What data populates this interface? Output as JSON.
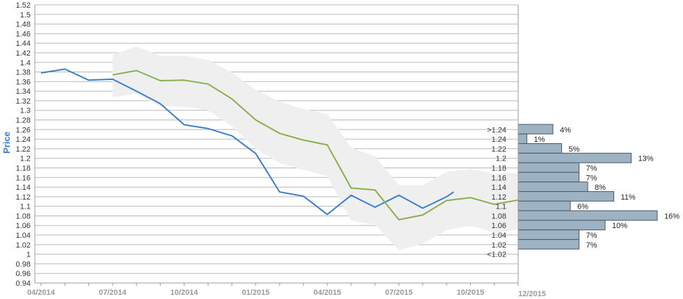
{
  "chart_data": {
    "type": "line",
    "ylabel": "Price",
    "ylim": [
      0.94,
      1.52
    ],
    "y_ticks": [
      "0.94",
      "0.96",
      "0.98",
      "1",
      "1.02",
      "1.04",
      "1.06",
      "1.08",
      "1.1",
      "1.12",
      "1.14",
      "1.16",
      "1.18",
      "1.2",
      "1.22",
      "1.24",
      "1.26",
      "1.28",
      "1.3",
      "1.32",
      "1.34",
      "1.36",
      "1.38",
      "1.4",
      "1.42",
      "1.44",
      "1.46",
      "1.48",
      "1.5",
      "1.52"
    ],
    "x_ticks": [
      "04/2014",
      "07/2014",
      "10/2014",
      "01/2015",
      "04/2015",
      "07/2015",
      "10/2015",
      "12/2015"
    ],
    "grid": true,
    "series": [
      {
        "color": "#3a7ec8",
        "points": [
          [
            "2014-04-01",
            1.378
          ],
          [
            "2014-05-01",
            1.386
          ],
          [
            "2014-06-01",
            1.363
          ],
          [
            "2014-07-01",
            1.365
          ],
          [
            "2014-08-01",
            1.34
          ],
          [
            "2014-09-01",
            1.314
          ],
          [
            "2014-10-01",
            1.27
          ],
          [
            "2014-11-01",
            1.262
          ],
          [
            "2014-12-01",
            1.247
          ],
          [
            "2015-01-01",
            1.21
          ],
          [
            "2015-02-01",
            1.13
          ],
          [
            "2015-03-01",
            1.121
          ],
          [
            "2015-04-01",
            1.083
          ],
          [
            "2015-05-01",
            1.123
          ],
          [
            "2015-06-01",
            1.098
          ],
          [
            "2015-07-01",
            1.123
          ],
          [
            "2015-08-01",
            1.096
          ],
          [
            "2015-09-01",
            1.12
          ],
          [
            "2015-09-10",
            1.13
          ]
        ]
      },
      {
        "color": "#8aad4e",
        "points": [
          [
            "2014-07-01",
            1.374
          ],
          [
            "2014-08-01",
            1.383
          ],
          [
            "2014-09-01",
            1.362
          ],
          [
            "2014-10-01",
            1.363
          ],
          [
            "2014-11-01",
            1.355
          ],
          [
            "2014-12-01",
            1.324
          ],
          [
            "2015-01-01",
            1.28
          ],
          [
            "2015-02-01",
            1.252
          ],
          [
            "2015-03-01",
            1.238
          ],
          [
            "2015-04-01",
            1.228
          ],
          [
            "2015-05-01",
            1.138
          ],
          [
            "2015-06-01",
            1.134
          ],
          [
            "2015-07-01",
            1.072
          ],
          [
            "2015-08-01",
            1.082
          ],
          [
            "2015-09-01",
            1.112
          ],
          [
            "2015-10-01",
            1.118
          ],
          [
            "2015-11-01",
            1.104
          ],
          [
            "2015-12-01",
            1.113
          ]
        ]
      }
    ],
    "band": {
      "color": "#efefef",
      "upper": [
        [
          "2014-07-01",
          1.416
        ],
        [
          "2014-08-01",
          1.433
        ],
        [
          "2014-09-01",
          1.414
        ],
        [
          "2014-10-01",
          1.414
        ],
        [
          "2014-11-01",
          1.405
        ],
        [
          "2014-12-01",
          1.379
        ],
        [
          "2015-01-01",
          1.343
        ],
        [
          "2015-02-01",
          1.318
        ],
        [
          "2015-03-01",
          1.303
        ],
        [
          "2015-04-01",
          1.292
        ],
        [
          "2015-05-01",
          1.222
        ],
        [
          "2015-06-01",
          1.204
        ],
        [
          "2015-07-01",
          1.144
        ],
        [
          "2015-08-01",
          1.144
        ],
        [
          "2015-09-01",
          1.172
        ],
        [
          "2015-10-01",
          1.178
        ],
        [
          "2015-11-01",
          1.168
        ],
        [
          "2015-12-01",
          1.17
        ]
      ],
      "lower": [
        [
          "2014-07-01",
          1.327
        ],
        [
          "2014-08-01",
          1.335
        ],
        [
          "2014-09-01",
          1.308
        ],
        [
          "2014-10-01",
          1.308
        ],
        [
          "2014-11-01",
          1.3
        ],
        [
          "2014-12-01",
          1.267
        ],
        [
          "2015-01-01",
          1.22
        ],
        [
          "2015-02-01",
          1.19
        ],
        [
          "2015-03-01",
          1.176
        ],
        [
          "2015-04-01",
          1.163
        ],
        [
          "2015-05-01",
          1.07
        ],
        [
          "2015-06-01",
          1.062
        ],
        [
          "2015-07-01",
          1.008
        ],
        [
          "2015-08-01",
          1.022
        ],
        [
          "2015-09-01",
          1.05
        ],
        [
          "2015-10-01",
          1.06
        ],
        [
          "2015-11-01",
          1.045
        ],
        [
          "2015-12-01",
          1.052
        ]
      ]
    },
    "histogram": {
      "color": "#9db3c3",
      "bins": [
        {
          "label": ">1.24",
          "y": 1.26,
          "pct": 4,
          "text": "4%"
        },
        {
          "label": "1.24",
          "y": 1.24,
          "pct": 1,
          "text": "1%"
        },
        {
          "label": "1.22",
          "y": 1.22,
          "pct": 5,
          "text": "5%"
        },
        {
          "label": "1.2",
          "y": 1.2,
          "pct": 13,
          "text": "13%"
        },
        {
          "label": "1.18",
          "y": 1.18,
          "pct": 7,
          "text": "7%"
        },
        {
          "label": "1.16",
          "y": 1.16,
          "pct": 7,
          "text": "7%"
        },
        {
          "label": "1.14",
          "y": 1.14,
          "pct": 8,
          "text": "8%"
        },
        {
          "label": "1.12",
          "y": 1.12,
          "pct": 11,
          "text": "11%"
        },
        {
          "label": "1.1",
          "y": 1.1,
          "pct": 6,
          "text": "6%"
        },
        {
          "label": "1.08",
          "y": 1.08,
          "pct": 16,
          "text": "16%"
        },
        {
          "label": "1.06",
          "y": 1.06,
          "pct": 10,
          "text": "10%"
        },
        {
          "label": "1.04",
          "y": 1.04,
          "pct": 7,
          "text": "7%"
        },
        {
          "label": "1.02",
          "y": 1.02,
          "pct": 7,
          "text": "7%"
        },
        {
          "label": "<1.02",
          "y": 1.0,
          "pct": null,
          "text": ""
        }
      ]
    }
  }
}
